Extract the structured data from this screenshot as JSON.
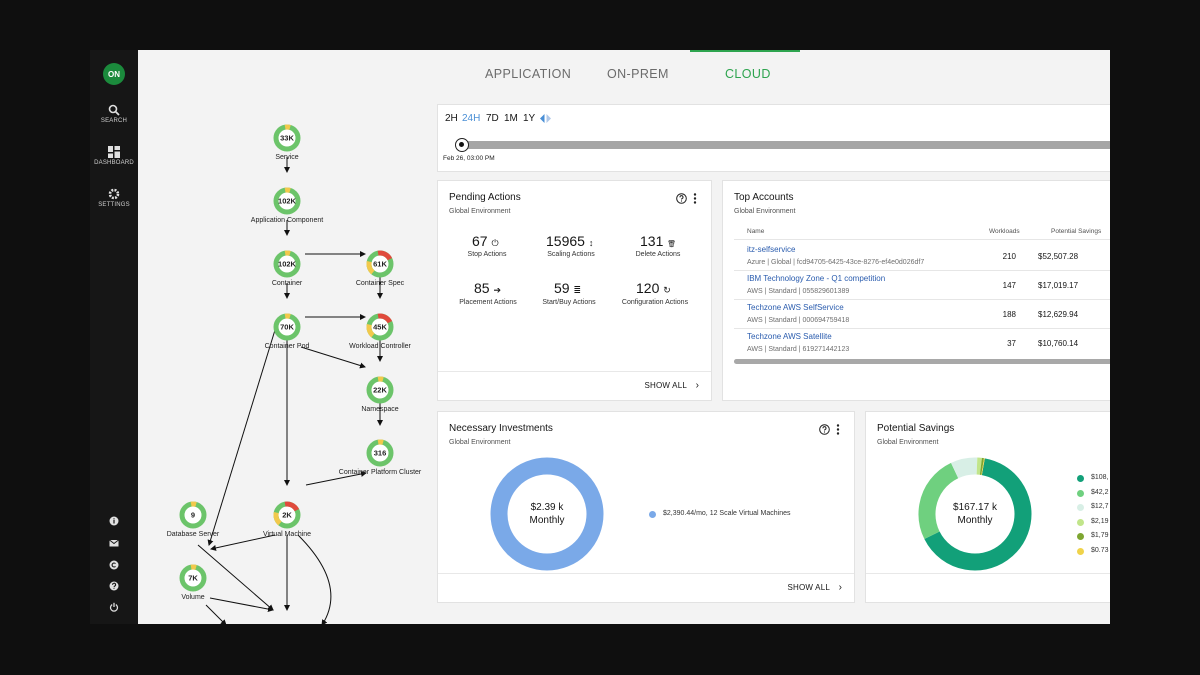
{
  "colors": {
    "accent": "#2ea44f",
    "link": "#2a5cae",
    "sidebar": "#161616",
    "donut_blue": "#7aa9e8"
  },
  "sidebar": {
    "logo": "ON",
    "items": [
      {
        "label": "SEARCH",
        "icon": "search-icon"
      },
      {
        "label": "DASHBOARD",
        "icon": "dashboard-icon"
      },
      {
        "label": "SETTINGS",
        "icon": "gear-icon"
      }
    ],
    "bottom_icons": [
      "info-icon",
      "mail-icon",
      "copyright-icon",
      "help-icon",
      "power-icon"
    ]
  },
  "tabs": [
    {
      "label": "APPLICATION",
      "active": false
    },
    {
      "label": "ON-PREM",
      "active": false
    },
    {
      "label": "CLOUD",
      "active": true
    }
  ],
  "topology": {
    "nodes": [
      {
        "id": "service",
        "value": "33K",
        "label": "Service"
      },
      {
        "id": "app",
        "value": "102K",
        "label": "Application Component"
      },
      {
        "id": "container",
        "value": "102K",
        "label": "Container"
      },
      {
        "id": "cspec",
        "value": "61K",
        "label": "Container Spec"
      },
      {
        "id": "pod",
        "value": "70K",
        "label": "Container Pod"
      },
      {
        "id": "wctrl",
        "value": "45K",
        "label": "Workload Controller"
      },
      {
        "id": "ns",
        "value": "22K",
        "label": "Namespace"
      },
      {
        "id": "cpc",
        "value": "316",
        "label": "Container Platform Cluster"
      },
      {
        "id": "vm",
        "value": "2K",
        "label": "Virtual Machine"
      },
      {
        "id": "db",
        "value": "9",
        "label": "Database Server"
      },
      {
        "id": "vol",
        "value": "7K",
        "label": "Volume"
      }
    ]
  },
  "timeline": {
    "ranges": [
      "2H",
      "24H",
      "7D",
      "1M",
      "1Y"
    ],
    "active": "24H",
    "date": "Feb 26, 03:00 PM"
  },
  "pending": {
    "title": "Pending Actions",
    "subtitle": "Global Environment",
    "items": [
      {
        "value": "67",
        "label": "Stop Actions",
        "icon": "power-icon",
        "glyph": "⏻"
      },
      {
        "value": "15965",
        "label": "Scaling Actions",
        "icon": "scale-icon",
        "glyph": "↕"
      },
      {
        "value": "131",
        "label": "Delete Actions",
        "icon": "trash-icon",
        "glyph": "🗑"
      },
      {
        "value": "85",
        "label": "Placement Actions",
        "icon": "arrow-right-icon",
        "glyph": "➔"
      },
      {
        "value": "59",
        "label": "Start/Buy Actions",
        "icon": "server-icon",
        "glyph": "≣"
      },
      {
        "value": "120",
        "label": "Configuration Actions",
        "icon": "refresh-icon",
        "glyph": "↻"
      }
    ],
    "show_all": "SHOW ALL"
  },
  "accounts": {
    "title": "Top Accounts",
    "subtitle": "Global Environment",
    "headers": {
      "name": "Name",
      "workloads": "Workloads",
      "savings": "Potential Savings"
    },
    "rows": [
      {
        "name": "itz-selfservice",
        "sub": "Azure | Global | fcd94705-6425-43ce-8276-ef4e0d026df7",
        "workloads": "210",
        "savings": "$52,507.28"
      },
      {
        "name": "IBM Technology Zone - Q1 competition",
        "sub": "AWS | Standard | 055829601389",
        "workloads": "147",
        "savings": "$17,019.17"
      },
      {
        "name": "Techzone AWS SelfService",
        "sub": "AWS | Standard | 000694759418",
        "workloads": "188",
        "savings": "$12,629.94"
      },
      {
        "name": "Techzone AWS Satellite",
        "sub": "AWS | Standard | 619271442123",
        "workloads": "37",
        "savings": "$10,760.14"
      }
    ]
  },
  "investments": {
    "title": "Necessary Investments",
    "subtitle": "Global Environment",
    "center_value": "$2.39 k",
    "center_unit": "Monthly",
    "legend": "$2,390.44/mo, 12 Scale Virtual Machines",
    "show_all": "SHOW ALL"
  },
  "savings": {
    "title": "Potential Savings",
    "subtitle": "Global Environment",
    "center_value": "$167.17 k",
    "center_unit": "Monthly",
    "legend": [
      {
        "label": "$108,",
        "color": "#12a079"
      },
      {
        "label": "$42,2",
        "color": "#6fd07f"
      },
      {
        "label": "$12,7",
        "color": "#d8efe6"
      },
      {
        "label": "$2,19",
        "color": "#c1e58a"
      },
      {
        "label": "$1,79",
        "color": "#7ea631"
      },
      {
        "label": "$0.73",
        "color": "#f0d34a"
      }
    ]
  }
}
